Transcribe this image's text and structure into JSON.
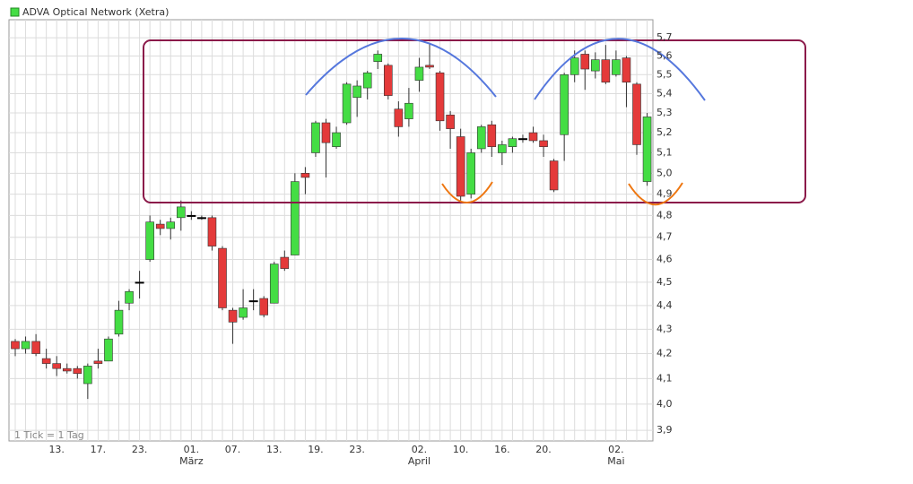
{
  "chart_data": {
    "type": "candlestick",
    "title": "ADVA Optical Network (Xetra)",
    "note": "1 Tick = 1 Tag",
    "categories": [
      null,
      null,
      null,
      null,
      "13.",
      null,
      null,
      null,
      "17.",
      null,
      null,
      null,
      "23.",
      null,
      null,
      null,
      null,
      "01.",
      null,
      null,
      null,
      "07.",
      null,
      null,
      null,
      "13.",
      null,
      null,
      null,
      "19.",
      null,
      null,
      null,
      "23.",
      null,
      null,
      null,
      null,
      null,
      "02.",
      null,
      null,
      null,
      "10.",
      null,
      null,
      null,
      "16.",
      null,
      null,
      null,
      "20.",
      null,
      null,
      null,
      null,
      null,
      null,
      "02.",
      null,
      null,
      null
    ],
    "months": [
      null,
      null,
      null,
      null,
      null,
      null,
      null,
      null,
      null,
      null,
      null,
      null,
      null,
      null,
      null,
      null,
      null,
      "März",
      null,
      null,
      null,
      null,
      null,
      null,
      null,
      null,
      null,
      null,
      null,
      null,
      null,
      null,
      null,
      null,
      null,
      null,
      null,
      null,
      null,
      "April",
      null,
      null,
      null,
      null,
      null,
      null,
      null,
      null,
      null,
      null,
      null,
      null,
      null,
      null,
      null,
      null,
      null,
      null,
      "Mai",
      null,
      null,
      null
    ],
    "open": [
      4.25,
      4.22,
      4.25,
      4.18,
      4.16,
      4.14,
      4.14,
      4.08,
      4.17,
      4.17,
      4.28,
      4.41,
      4.5,
      4.6,
      4.76,
      4.74,
      4.79,
      4.8,
      4.79,
      4.79,
      4.65,
      4.38,
      4.35,
      4.42,
      4.43,
      4.41,
      4.61,
      4.62,
      5.0,
      5.1,
      5.25,
      5.13,
      5.25,
      5.38,
      5.43,
      5.57,
      5.55,
      5.32,
      5.27,
      5.47,
      5.55,
      5.51,
      5.29,
      5.18,
      4.9,
      5.12,
      5.24,
      5.1,
      5.13,
      5.17,
      5.2,
      5.16,
      5.06,
      5.19,
      5.5,
      5.61,
      5.52,
      5.58,
      5.5,
      5.59,
      5.45,
      4.96
    ],
    "high": [
      4.26,
      4.27,
      4.28,
      4.22,
      4.19,
      4.16,
      4.15,
      4.16,
      4.22,
      4.27,
      4.42,
      4.47,
      4.55,
      4.8,
      4.78,
      4.79,
      4.87,
      4.82,
      4.8,
      4.8,
      4.66,
      4.39,
      4.47,
      4.47,
      4.44,
      4.59,
      4.64,
      5.0,
      5.03,
      5.26,
      5.27,
      5.23,
      5.46,
      5.47,
      5.52,
      5.63,
      5.56,
      5.36,
      5.43,
      5.59,
      5.67,
      5.52,
      5.31,
      5.22,
      5.12,
      5.24,
      5.26,
      5.16,
      5.18,
      5.19,
      5.23,
      5.19,
      5.07,
      5.51,
      5.63,
      5.63,
      5.62,
      5.66,
      5.63,
      5.6,
      5.46,
      5.3
    ],
    "low": [
      4.19,
      4.2,
      4.19,
      4.14,
      4.11,
      4.12,
      4.1,
      4.02,
      4.14,
      4.17,
      4.27,
      4.38,
      4.43,
      4.59,
      4.71,
      4.69,
      4.73,
      4.78,
      4.78,
      4.64,
      4.38,
      4.24,
      4.34,
      4.38,
      4.35,
      4.41,
      4.55,
      4.62,
      4.9,
      5.08,
      4.98,
      5.12,
      5.24,
      5.28,
      5.37,
      5.53,
      5.37,
      5.18,
      5.23,
      5.41,
      5.53,
      5.21,
      5.12,
      4.87,
      4.88,
      5.1,
      5.08,
      5.04,
      5.1,
      5.15,
      5.15,
      5.08,
      4.91,
      5.06,
      5.46,
      5.42,
      5.48,
      5.45,
      5.49,
      5.33,
      5.09,
      4.94
    ],
    "close": [
      4.22,
      4.25,
      4.2,
      4.16,
      4.14,
      4.13,
      4.12,
      4.15,
      4.16,
      4.26,
      4.38,
      4.46,
      4.5,
      4.77,
      4.74,
      4.77,
      4.84,
      4.8,
      4.79,
      4.66,
      4.39,
      4.33,
      4.39,
      4.42,
      4.36,
      4.58,
      4.56,
      4.96,
      4.98,
      5.25,
      5.15,
      5.2,
      5.45,
      5.44,
      5.51,
      5.61,
      5.39,
      5.23,
      5.35,
      5.54,
      5.54,
      5.26,
      5.22,
      4.89,
      5.1,
      5.23,
      5.13,
      5.14,
      5.17,
      5.17,
      5.16,
      5.13,
      4.92,
      5.5,
      5.59,
      5.53,
      5.58,
      5.46,
      5.58,
      5.46,
      5.14,
      5.28
    ],
    "up_color": "#44dd44",
    "down_color": "#e43a3a",
    "doji_color": "#000000",
    "log_scale": true,
    "grid": true,
    "ylim": [
      3.86,
      5.8
    ],
    "yticks": [
      {
        "value": 3.9,
        "label": "3,9"
      },
      {
        "value": 4.0,
        "label": "4,0"
      },
      {
        "value": 4.1,
        "label": "4,1"
      },
      {
        "value": 4.2,
        "label": "4,2"
      },
      {
        "value": 4.3,
        "label": "4,3"
      },
      {
        "value": 4.4,
        "label": "4,4"
      },
      {
        "value": 4.5,
        "label": "4,5"
      },
      {
        "value": 4.6,
        "label": "4,6"
      },
      {
        "value": 4.7,
        "label": "4,7"
      },
      {
        "value": 4.8,
        "label": "4,8"
      },
      {
        "value": 4.9,
        "label": "4,9"
      },
      {
        "value": 5.0,
        "label": "5,0"
      },
      {
        "value": 5.1,
        "label": "5,1"
      },
      {
        "value": 5.2,
        "label": "5,2"
      },
      {
        "value": 5.3,
        "label": "5,3"
      },
      {
        "value": 5.4,
        "label": "5,4"
      },
      {
        "value": 5.5,
        "label": "5,5"
      },
      {
        "value": 5.6,
        "label": "5,6"
      },
      {
        "value": 5.7,
        "label": "5,7"
      }
    ]
  }
}
